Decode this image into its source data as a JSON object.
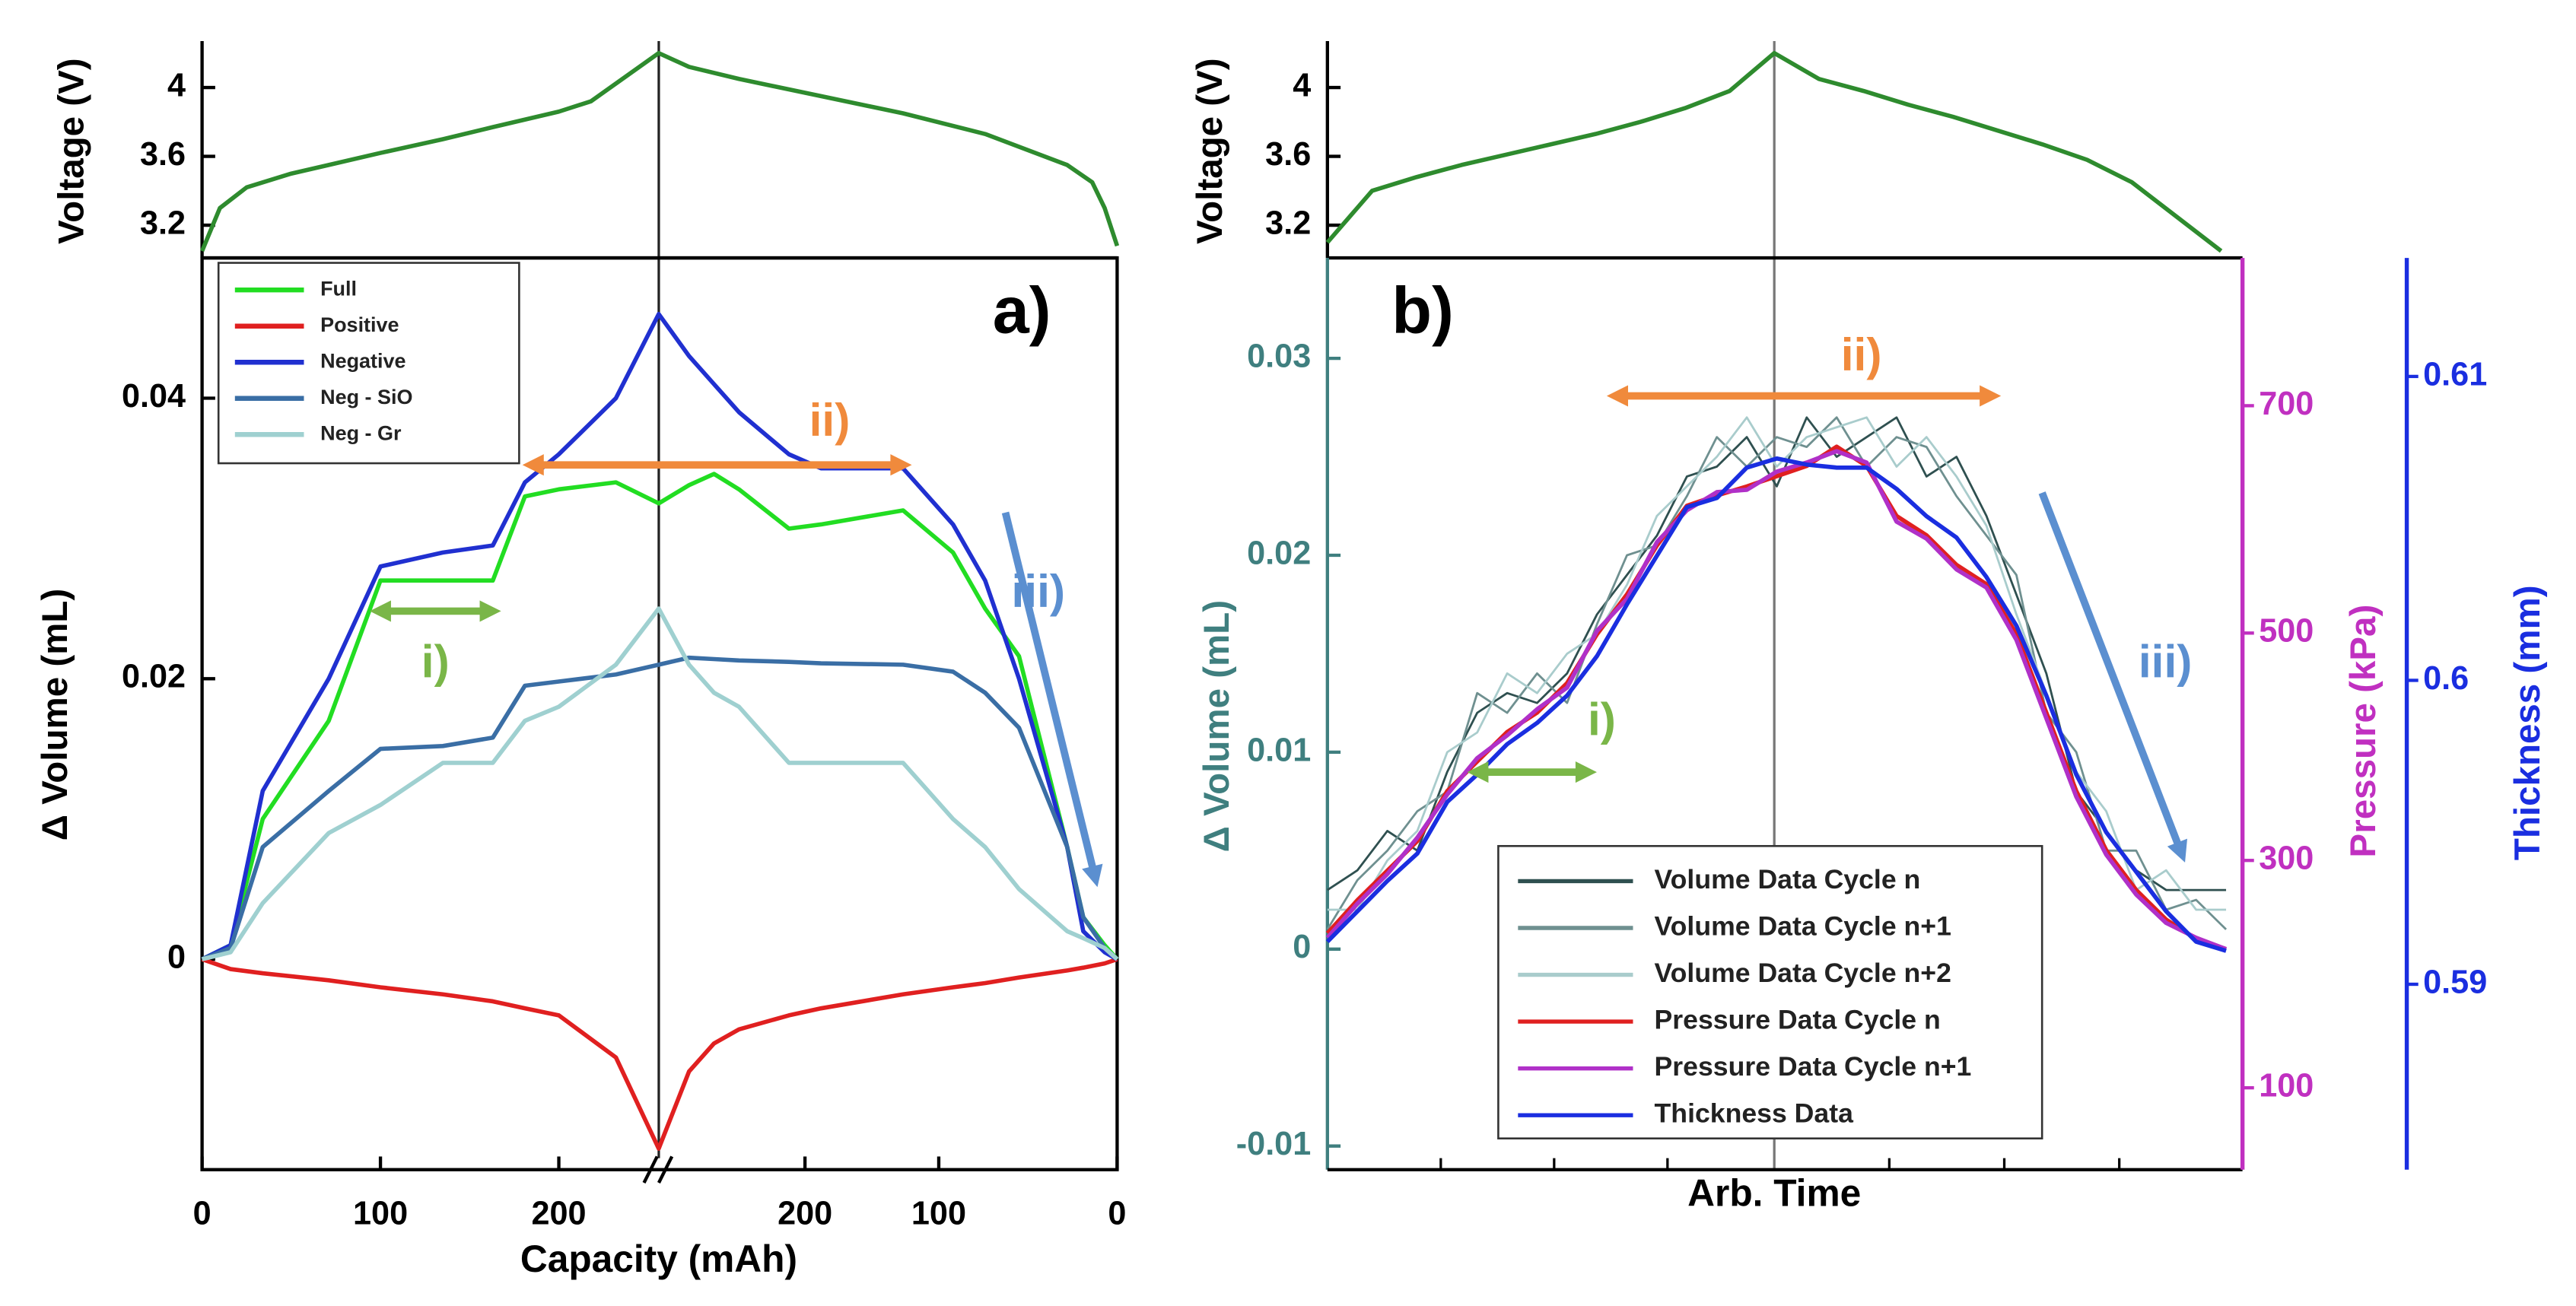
{
  "chart_data": [
    {
      "type": "line",
      "ylabel": "Voltage (V)",
      "x": [
        0,
        10,
        25,
        50,
        71,
        100,
        135,
        163,
        200,
        218,
        256,
        273,
        301,
        347,
        393,
        439,
        485,
        499,
        506,
        513
      ],
      "xlim": [
        0,
        513
      ],
      "ylim": [
        3.01,
        4.27
      ],
      "yticks": [
        3.2,
        3.6,
        4
      ],
      "series": [
        {
          "name": "Voltage",
          "color": "#2e8b2e",
          "values": [
            3.05,
            3.3,
            3.42,
            3.5,
            3.55,
            3.62,
            3.7,
            3.77,
            3.86,
            3.92,
            4.2,
            4.12,
            4.05,
            3.95,
            3.85,
            3.73,
            3.55,
            3.45,
            3.3,
            3.08
          ]
        }
      ]
    },
    {
      "type": "line",
      "ylabel": "Δ Volume (mL)",
      "xlabel": "Capacity (mAh)",
      "x": [
        0,
        16,
        34,
        71,
        100,
        135,
        163,
        181,
        200,
        232,
        256,
        273,
        287,
        301,
        329,
        347,
        393,
        421,
        439,
        458,
        485,
        494,
        506,
        513
      ],
      "xlim": [
        0,
        513
      ],
      "xticks": [
        0,
        100,
        200,
        {
          "value": 338,
          "label": "200"
        },
        {
          "value": 413,
          "label": "100"
        },
        {
          "value": 513,
          "label": "0"
        }
      ],
      "ylim": [
        -0.015,
        0.05
      ],
      "yticks": [
        0,
        0.02,
        0.04
      ],
      "legend": "upper left",
      "annotations": [
        "a)",
        "i)",
        "ii)",
        "iii)"
      ],
      "series": [
        {
          "name": "Full",
          "color": "#22dd22",
          "values": [
            0,
            0.001,
            0.01,
            0.017,
            0.027,
            0.027,
            0.027,
            0.033,
            0.0335,
            0.034,
            0.0325,
            0.0338,
            0.0346,
            0.0335,
            0.0307,
            0.031,
            0.032,
            0.029,
            0.025,
            0.0216,
            0.008,
            0.003,
            0.001,
            0
          ]
        },
        {
          "name": "Positive",
          "color": "#e02020",
          "values": [
            0,
            -0.0007,
            -0.001,
            -0.0015,
            -0.002,
            -0.0025,
            -0.003,
            -0.0035,
            -0.004,
            -0.007,
            -0.0135,
            -0.008,
            -0.006,
            -0.005,
            -0.004,
            -0.0035,
            -0.0025,
            -0.002,
            -0.0017,
            -0.0013,
            -0.0008,
            -0.0006,
            -0.0003,
            0
          ]
        },
        {
          "name": "Negative",
          "color": "#2030d0",
          "values": [
            0,
            0.001,
            0.012,
            0.02,
            0.028,
            0.029,
            0.0295,
            0.034,
            0.036,
            0.04,
            0.046,
            0.043,
            0.041,
            0.039,
            0.036,
            0.035,
            0.035,
            0.031,
            0.027,
            0.02,
            0.008,
            0.002,
            0.0005,
            0
          ]
        },
        {
          "name": "Neg - SiO",
          "color": "#3a6ea5",
          "values": [
            0,
            0.0008,
            0.008,
            0.012,
            0.015,
            0.0152,
            0.0158,
            0.0195,
            0.0198,
            0.0203,
            0.021,
            0.0215,
            0.0214,
            0.0213,
            0.0212,
            0.0211,
            0.021,
            0.0205,
            0.019,
            0.0165,
            0.008,
            0.003,
            0.0008,
            0
          ]
        },
        {
          "name": "Neg - Gr",
          "color": "#9fd0d0",
          "values": [
            0,
            0.0005,
            0.004,
            0.009,
            0.011,
            0.014,
            0.014,
            0.017,
            0.018,
            0.021,
            0.025,
            0.021,
            0.019,
            0.018,
            0.014,
            0.014,
            0.014,
            0.01,
            0.008,
            0.005,
            0.002,
            0.0015,
            0.0008,
            0
          ]
        }
      ]
    },
    {
      "type": "line",
      "ylabel": "Voltage (V)",
      "ylim": [
        3.01,
        4.27
      ],
      "yticks": [
        3.2,
        3.6,
        4
      ],
      "series": [
        {
          "name": "Voltage",
          "color": "#2e8b2e",
          "values": [
            3.1,
            3.4,
            3.48,
            3.55,
            3.61,
            3.67,
            3.73,
            3.8,
            3.88,
            3.98,
            4.2,
            4.05,
            3.98,
            3.9,
            3.83,
            3.75,
            3.67,
            3.58,
            3.45,
            3.25,
            3.05
          ]
        }
      ]
    },
    {
      "type": "line",
      "ylabel": "Δ Volume (mL)",
      "xlabel": "Arb. Time",
      "ylim": [
        -0.0112,
        0.0351
      ],
      "yticks": [
        -0.01,
        0,
        0.01,
        0.02,
        0.03
      ],
      "y2label": "Pressure (kPa)",
      "y2lim": [
        28,
        830
      ],
      "y2ticks": [
        100,
        300,
        500,
        700
      ],
      "y3label": "Thickness (mm)",
      "y3lim": [
        0.5839,
        0.6139
      ],
      "y3ticks": [
        0.59,
        0.6,
        0.61
      ],
      "legend": "lower center",
      "annotations": [
        "b)",
        "i)",
        "ii)",
        "iii)"
      ],
      "series": [
        {
          "name": "Volume Data Cycle n",
          "color": "#2f5050",
          "values": [
            0.003,
            0.004,
            0.006,
            0.005,
            0.009,
            0.012,
            0.013,
            0.0125,
            0.014,
            0.017,
            0.019,
            0.021,
            0.024,
            0.0245,
            0.026,
            0.0235,
            0.027,
            0.025,
            0.026,
            0.027,
            0.024,
            0.025,
            0.022,
            0.018,
            0.014,
            0.008,
            0.006,
            0.004,
            0.003,
            0.003,
            0.003
          ]
        },
        {
          "name": "Volume Data Cycle n+1",
          "color": "#6f9090",
          "values": [
            0.001,
            0.0035,
            0.005,
            0.007,
            0.008,
            0.013,
            0.012,
            0.014,
            0.0125,
            0.0165,
            0.02,
            0.0205,
            0.023,
            0.026,
            0.0245,
            0.026,
            0.0255,
            0.027,
            0.0245,
            0.026,
            0.0255,
            0.023,
            0.021,
            0.019,
            0.012,
            0.01,
            0.005,
            0.005,
            0.002,
            0.0025,
            0.001
          ]
        },
        {
          "name": "Volume Data Cycle n+2",
          "color": "#a9cccc",
          "values": [
            0.002,
            0.002,
            0.0045,
            0.006,
            0.01,
            0.011,
            0.014,
            0.013,
            0.015,
            0.016,
            0.0185,
            0.022,
            0.0235,
            0.025,
            0.027,
            0.0245,
            0.026,
            0.0265,
            0.027,
            0.0245,
            0.026,
            0.024,
            0.0215,
            0.017,
            0.013,
            0.009,
            0.007,
            0.003,
            0.004,
            0.002,
            0.002
          ]
        },
        {
          "name": "Pressure Data Cycle n",
          "color": "#e02020",
          "axis": "y2",
          "values": [
            236,
            265,
            291,
            317,
            361,
            387,
            413,
            430,
            456,
            499,
            534,
            577,
            612,
            621,
            629,
            638,
            647,
            664,
            647,
            603,
            586,
            560,
            543,
            499,
            430,
            361,
            309,
            274,
            248,
            231,
            222
          ]
        },
        {
          "name": "Pressure Data Cycle n+1",
          "color": "#b030c8",
          "axis": "y2",
          "values": [
            232,
            262,
            288,
            320,
            358,
            390,
            410,
            433,
            452,
            502,
            530,
            580,
            608,
            624,
            626,
            642,
            650,
            660,
            650,
            598,
            583,
            556,
            540,
            494,
            425,
            356,
            305,
            270,
            245,
            232,
            222
          ]
        },
        {
          "name": "Thickness Data",
          "color": "#1a2ee0",
          "axis": "y3",
          "values": [
            0.5914,
            0.5924,
            0.5934,
            0.5943,
            0.596,
            0.5969,
            0.5979,
            0.5986,
            0.5995,
            0.6008,
            0.6025,
            0.6041,
            0.6057,
            0.606,
            0.607,
            0.6073,
            0.6071,
            0.607,
            0.607,
            0.6063,
            0.6054,
            0.6047,
            0.6034,
            0.6018,
            0.5995,
            0.5969,
            0.595,
            0.5937,
            0.5924,
            0.5914,
            0.5911
          ]
        }
      ]
    }
  ]
}
